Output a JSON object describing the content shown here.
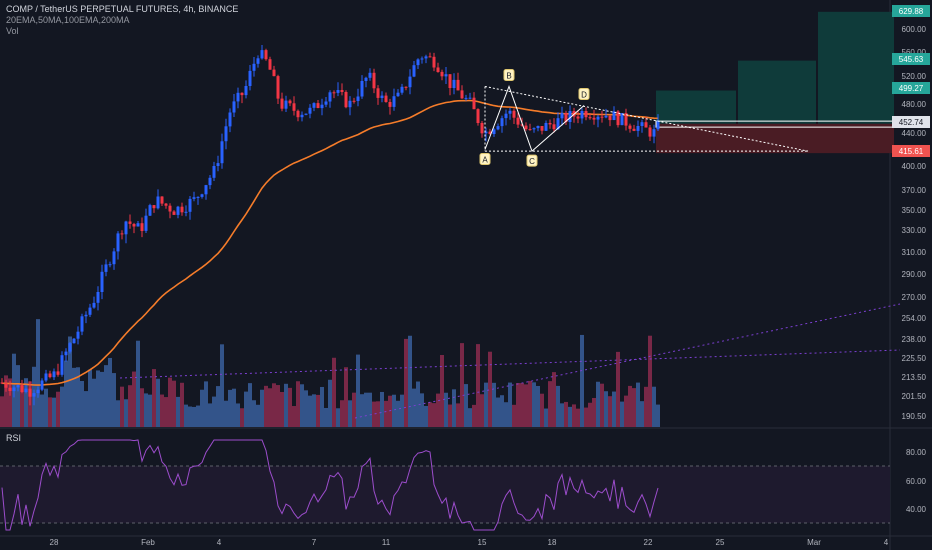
{
  "header": {
    "symbol_line": "COMP / TetherUS PERPETUAL FUTURES, 4h, BINANCE",
    "indicators": "20EMA,50MA,100EMA,200MA",
    "volume_label": "Vol"
  },
  "rsi": {
    "label": "RSI",
    "ticks": [
      "80.00",
      "60.00",
      "40.00"
    ]
  },
  "chart_data": {
    "type": "candlestick",
    "symbol": "COMP / TetherUS PERPETUAL FUTURES",
    "interval": "4h",
    "exchange": "BINANCE",
    "x_ticks": [
      "28",
      "Feb",
      "4",
      "7",
      "11",
      "15",
      "18",
      "22",
      "25",
      "Mar",
      "4"
    ],
    "y_ticks": [
      "600.00",
      "560.00",
      "520.00",
      "480.00",
      "440.00",
      "400.00",
      "370.00",
      "350.00",
      "330.00",
      "310.00",
      "290.00",
      "270.00",
      "254.00",
      "238.00",
      "225.50",
      "213.50",
      "201.50",
      "190.50"
    ],
    "price_labels": [
      {
        "value": "629.88",
        "color": "#26a69a"
      },
      {
        "value": "545.63",
        "color": "#26a69a"
      },
      {
        "value": "499.27",
        "color": "#26a69a"
      },
      {
        "value": "452.74",
        "color": "#e0e3eb"
      },
      {
        "value": "415.61",
        "color": "#ef5350"
      }
    ],
    "pattern_points": [
      "A",
      "B",
      "C",
      "D"
    ],
    "colors": {
      "up": "#2962ff",
      "down": "#f23645",
      "ema": "#f57c2a",
      "rsi": "#9c4dcc",
      "vol_up": "#3a5f9c",
      "vol_down": "#8c2b4e",
      "target_box": "#0f3b3a",
      "stop_box": "#4a1c24"
    },
    "candles_summary": {
      "start": 205,
      "end": 452.74,
      "peak_region_high": 575,
      "recent_low": 415.61
    }
  }
}
